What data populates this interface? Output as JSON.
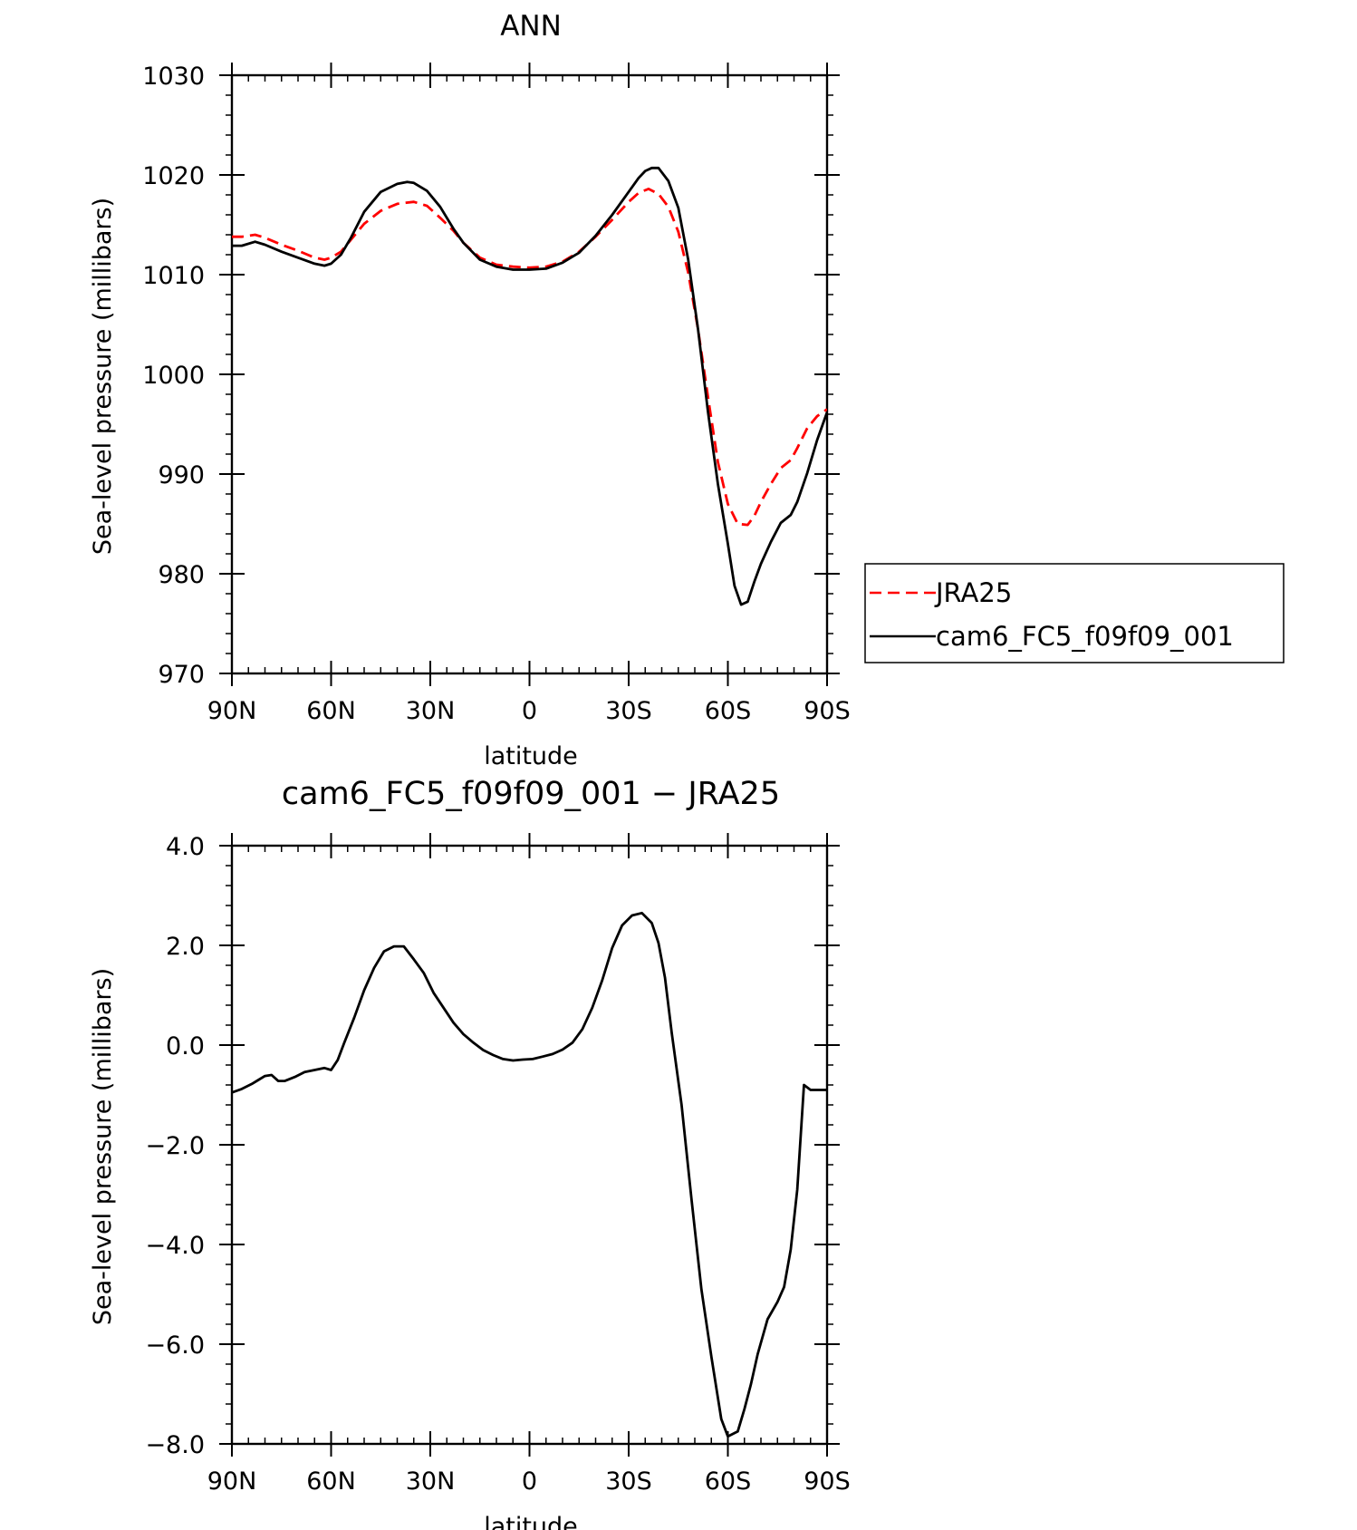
{
  "chart_data": [
    {
      "type": "line",
      "title": "ANN",
      "xlabel": "latitude",
      "ylabel": "Sea-level pressure (millibars)",
      "xlim": [
        90,
        -90
      ],
      "ylim": [
        970,
        1030
      ],
      "x_ticks": [
        90,
        60,
        30,
        0,
        -30,
        -60,
        -90
      ],
      "x_tick_labels": [
        "90N",
        "60N",
        "30N",
        "0",
        "30S",
        "60S",
        "90S"
      ],
      "y_ticks": [
        970,
        980,
        990,
        1000,
        1010,
        1020,
        1030
      ],
      "y_tick_labels": [
        "970",
        "980",
        "990",
        "1000",
        "1010",
        "1020",
        "1030"
      ],
      "grid": false,
      "legend": "right, outside",
      "series": [
        {
          "name": "JRA25",
          "color": "#ff0000",
          "dash": "dashed",
          "x": [
            90,
            87,
            83,
            80,
            75,
            70,
            65,
            62,
            60,
            57,
            54,
            50,
            45,
            40,
            35,
            31,
            27,
            23,
            20,
            15,
            10,
            5,
            0,
            -5,
            -10,
            -15,
            -20,
            -25,
            -30,
            -33,
            -36,
            -39,
            -42,
            -45,
            -48,
            -51,
            -54,
            -57,
            -60,
            -63,
            -66,
            -68,
            -70,
            -73,
            -76,
            -79,
            -81,
            -84,
            -87,
            -90
          ],
          "y": [
            1013.8,
            1013.8,
            1014.0,
            1013.7,
            1013.0,
            1012.4,
            1011.7,
            1011.5,
            1011.7,
            1012.3,
            1013.5,
            1015.1,
            1016.4,
            1017.1,
            1017.3,
            1016.9,
            1015.7,
            1014.4,
            1013.2,
            1011.7,
            1011.0,
            1010.8,
            1010.7,
            1010.8,
            1011.3,
            1012.3,
            1013.8,
            1015.5,
            1017.3,
            1018.2,
            1018.6,
            1018.1,
            1016.8,
            1014.3,
            1010.2,
            1004.5,
            997.7,
            991.2,
            987.0,
            985.0,
            984.9,
            985.8,
            987.2,
            989.0,
            990.6,
            991.4,
            992.6,
            994.6,
            995.8,
            996.5
          ]
        },
        {
          "name": "cam6_FC5_f09f09_001",
          "color": "#000000",
          "dash": "solid",
          "x": [
            90,
            87,
            83,
            80,
            75,
            70,
            65,
            62,
            60,
            57,
            54,
            50,
            45,
            40,
            37,
            35,
            31,
            27,
            23,
            20,
            15,
            10,
            5,
            0,
            -5,
            -10,
            -15,
            -20,
            -25,
            -30,
            -33,
            -35,
            -37,
            -39,
            -42,
            -45,
            -48,
            -51,
            -54,
            -57,
            -60,
            -62,
            -64,
            -66,
            -68,
            -70,
            -73,
            -76,
            -79,
            -81,
            -84,
            -87,
            -90
          ],
          "y": [
            1012.9,
            1012.9,
            1013.3,
            1013.0,
            1012.3,
            1011.7,
            1011.1,
            1010.9,
            1011.1,
            1012.0,
            1013.7,
            1016.3,
            1018.3,
            1019.1,
            1019.3,
            1019.2,
            1018.4,
            1016.8,
            1014.6,
            1013.2,
            1011.5,
            1010.8,
            1010.5,
            1010.5,
            1010.6,
            1011.2,
            1012.2,
            1013.9,
            1016.0,
            1018.3,
            1019.7,
            1020.4,
            1020.7,
            1020.7,
            1019.4,
            1016.7,
            1011.5,
            1004.5,
            996.2,
            989.0,
            983.0,
            978.8,
            976.9,
            977.2,
            979.2,
            981.0,
            983.2,
            985.1,
            985.9,
            987.2,
            990.1,
            993.4,
            996.2
          ]
        }
      ]
    },
    {
      "type": "line",
      "title": "cam6_FC5_f09f09_001 − JRA25",
      "xlabel": "latitude",
      "ylabel": "Sea-level pressure (millibars)",
      "xlim": [
        90,
        -90
      ],
      "ylim": [
        -8.0,
        4.0
      ],
      "x_ticks": [
        90,
        60,
        30,
        0,
        -30,
        -60,
        -90
      ],
      "x_tick_labels": [
        "90N",
        "60N",
        "30N",
        "0",
        "30S",
        "60S",
        "90S"
      ],
      "y_ticks": [
        -8,
        -6,
        -4,
        -2,
        0,
        2,
        4
      ],
      "y_tick_labels": [
        "−8.0",
        "−6.0",
        "−4.0",
        "−2.0",
        "0.0",
        "2.0",
        "4.0"
      ],
      "grid": false,
      "series": [
        {
          "color": "#000000",
          "dash": "solid",
          "x": [
            90,
            87,
            84,
            82,
            80,
            78,
            76,
            74,
            71,
            68,
            65,
            62,
            60,
            58,
            56,
            53,
            50,
            47,
            44,
            41,
            38,
            35,
            32,
            29,
            26,
            23,
            20,
            17,
            14,
            11,
            8,
            5,
            2,
            -1,
            -4,
            -7,
            -10,
            -13,
            -16,
            -19,
            -22,
            -25,
            -28,
            -31,
            -34,
            -37,
            -39,
            -41,
            -43,
            -46,
            -49,
            -52,
            -55,
            -58,
            -60,
            -63,
            -65,
            -67,
            -69,
            -72,
            -75,
            -77,
            -79,
            -81,
            -83,
            -85,
            -87,
            -88,
            -90
          ],
          "y": [
            -0.95,
            -0.88,
            -0.78,
            -0.7,
            -0.62,
            -0.6,
            -0.72,
            -0.72,
            -0.64,
            -0.54,
            -0.5,
            -0.46,
            -0.5,
            -0.3,
            0.05,
            0.55,
            1.1,
            1.55,
            1.88,
            1.98,
            1.98,
            1.72,
            1.45,
            1.05,
            0.75,
            0.45,
            0.22,
            0.05,
            -0.1,
            -0.2,
            -0.28,
            -0.31,
            -0.29,
            -0.28,
            -0.23,
            -0.18,
            -0.09,
            0.05,
            0.32,
            0.75,
            1.3,
            1.95,
            2.4,
            2.6,
            2.65,
            2.45,
            2.05,
            1.35,
            0.25,
            -1.2,
            -3.1,
            -4.9,
            -6.25,
            -7.5,
            -7.85,
            -7.75,
            -7.3,
            -6.8,
            -6.2,
            -5.5,
            -5.15,
            -4.85,
            -4.1,
            -2.9,
            -0.8,
            -0.9,
            -0.9,
            -0.9,
            -0.9
          ]
        }
      ]
    }
  ],
  "legend": {
    "items": [
      {
        "label": "JRA25",
        "color": "#ff0000",
        "dash": "dashed"
      },
      {
        "label": "cam6_FC5_f09f09_001",
        "color": "#000000",
        "dash": "solid"
      }
    ]
  }
}
